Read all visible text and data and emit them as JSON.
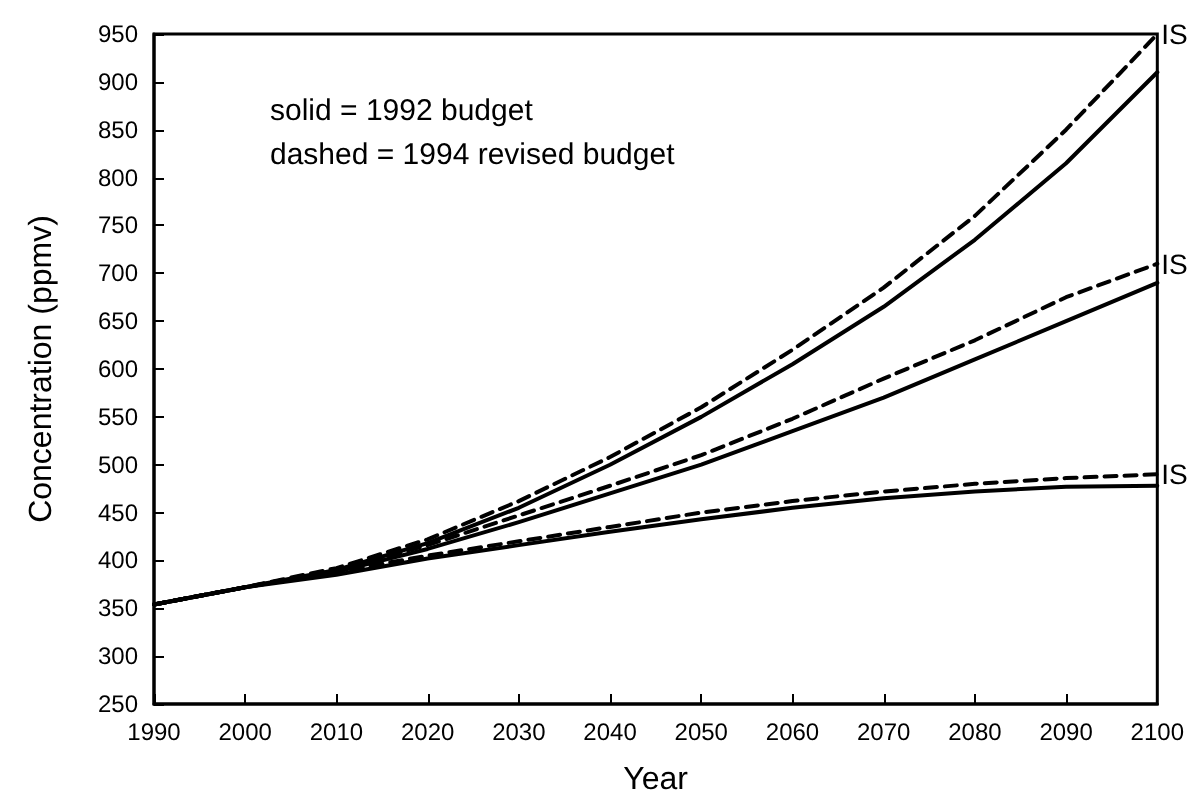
{
  "chart_data": {
    "type": "line",
    "xlabel": "Year",
    "ylabel": "Concentration (ppmv)",
    "x": [
      1990,
      2000,
      2010,
      2020,
      2030,
      2040,
      2050,
      2060,
      2070,
      2080,
      2090,
      2100
    ],
    "series": [
      {
        "color": "#000000",
        "line_style": "solid",
        "values": [
          354,
          372,
          390,
          418,
          455,
          500,
          550,
          605,
          665,
          735,
          815,
          910
        ]
      },
      {
        "name": "IS",
        "color": "#000000",
        "line_style": "dashed",
        "values": [
          354,
          372,
          392,
          422,
          462,
          508,
          560,
          620,
          685,
          760,
          850,
          950
        ]
      },
      {
        "color": "#000000",
        "line_style": "solid",
        "values": [
          354,
          372,
          388,
          412,
          440,
          470,
          500,
          535,
          570,
          610,
          650,
          690
        ]
      },
      {
        "name": "IS",
        "color": "#000000",
        "line_style": "dashed",
        "values": [
          354,
          372,
          390,
          416,
          447,
          478,
          510,
          548,
          590,
          630,
          675,
          710
        ]
      },
      {
        "color": "#000000",
        "line_style": "solid",
        "values": [
          354,
          372,
          385,
          402,
          416,
          430,
          443,
          455,
          465,
          472,
          477,
          478
        ]
      },
      {
        "name": "IS",
        "color": "#000000",
        "line_style": "dashed",
        "values": [
          354,
          372,
          388,
          405,
          420,
          435,
          450,
          462,
          472,
          480,
          486,
          490
        ]
      }
    ],
    "xlim": [
      1990,
      2100
    ],
    "xticks": [
      1990,
      2000,
      2010,
      2020,
      2030,
      2040,
      2050,
      2060,
      2070,
      2080,
      2090,
      2100
    ],
    "ylim": [
      250,
      950
    ],
    "yticks": [
      250,
      300,
      350,
      400,
      450,
      500,
      550,
      600,
      650,
      700,
      750,
      800,
      850,
      900,
      950
    ],
    "grid": false,
    "marker": "none",
    "annotations": [
      "solid = 1992 budget",
      "dashed = 1994 revised budget"
    ]
  }
}
